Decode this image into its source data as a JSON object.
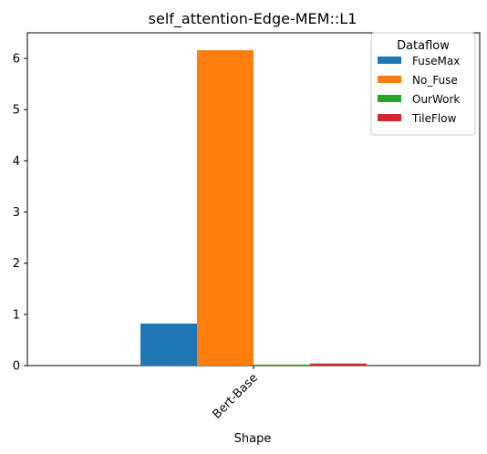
{
  "chart_data": {
    "type": "bar",
    "title": "self_attention-Edge-MEM::L1",
    "xlabel": "Shape",
    "ylabel": "",
    "categories": [
      "Bert-Base"
    ],
    "ylim": [
      0,
      6.5
    ],
    "yticks": [
      0,
      1,
      2,
      3,
      4,
      5,
      6
    ],
    "grid": false,
    "legend": {
      "title": "Dataflow",
      "placement": "top-right"
    },
    "series": [
      {
        "name": "FuseMax",
        "values": [
          0.82
        ],
        "color": "#1f77b4"
      },
      {
        "name": "No_Fuse",
        "values": [
          6.16
        ],
        "color": "#ff7f0e"
      },
      {
        "name": "OurWork",
        "values": [
          0.02
        ],
        "color": "#2ca02c"
      },
      {
        "name": "TileFlow",
        "values": [
          0.04
        ],
        "color": "#d62728"
      }
    ]
  }
}
